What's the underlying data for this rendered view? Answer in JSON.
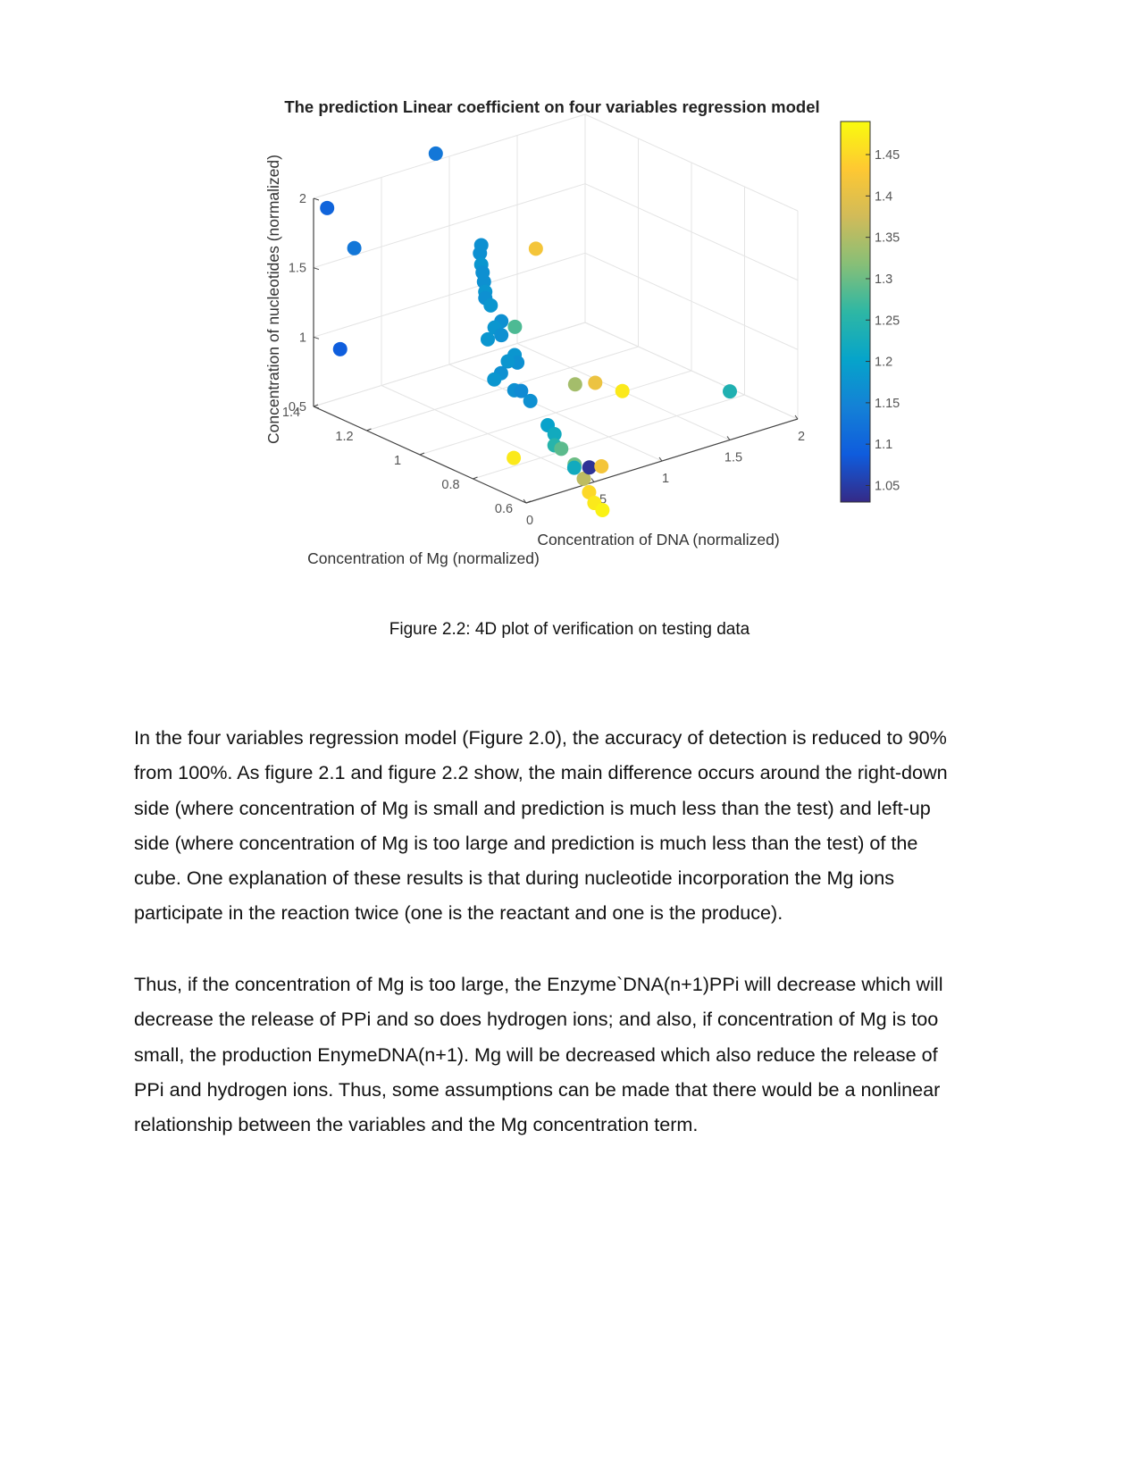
{
  "chart_data": {
    "type": "scatter",
    "title": "The prediction Linear coefficient on four variables regression model",
    "xlabel": "Concentration of DNA (normalized)",
    "ylabel": "Concentration of Mg (normalized)",
    "zlabel": "Concentration of nucleotides (normalized)",
    "x_ticks": [
      "0",
      "0.5",
      "1",
      "1.5",
      "2"
    ],
    "y_ticks": [
      "0.6",
      "0.8",
      "1",
      "1.2",
      "1.4"
    ],
    "z_ticks": [
      "0.5",
      "1",
      "1.5",
      "2"
    ],
    "xlim": [
      0,
      2
    ],
    "ylim": [
      0.6,
      1.4
    ],
    "zlim": [
      0.5,
      2
    ],
    "colorbar_ticks": [
      "1.05",
      "1.1",
      "1.15",
      "1.2",
      "1.25",
      "1.3",
      "1.35",
      "1.4",
      "1.45"
    ],
    "colorbar_range": [
      1.03,
      1.49
    ],
    "colormap": [
      "#352a87",
      "#0f5cdd",
      "#1481d6",
      "#06a4ca",
      "#2eb7a4",
      "#87bf77",
      "#d1bb59",
      "#fec832",
      "#f9fb0e"
    ],
    "grid": true,
    "points": [
      {
        "x": 0.9,
        "y": 1.4,
        "z": 2.05,
        "c": 1.13
      },
      {
        "x": 0.1,
        "y": 1.4,
        "z": 1.9,
        "c": 1.1
      },
      {
        "x": 0.3,
        "y": 1.4,
        "z": 1.55,
        "c": 1.13
      },
      {
        "x": 0.0,
        "y": 1.3,
        "z": 1.0,
        "c": 1.09
      },
      {
        "x": 0.55,
        "y": 1.05,
        "z": 1.8,
        "c": 1.17
      },
      {
        "x": 0.56,
        "y": 1.06,
        "z": 1.73,
        "c": 1.17
      },
      {
        "x": 0.55,
        "y": 1.05,
        "z": 1.66,
        "c": 1.18
      },
      {
        "x": 0.56,
        "y": 1.05,
        "z": 1.6,
        "c": 1.17
      },
      {
        "x": 0.57,
        "y": 1.05,
        "z": 1.53,
        "c": 1.17
      },
      {
        "x": 0.56,
        "y": 1.04,
        "z": 1.47,
        "c": 1.18
      },
      {
        "x": 0.58,
        "y": 1.05,
        "z": 1.41,
        "c": 1.17
      },
      {
        "x": 0.6,
        "y": 1.04,
        "z": 1.36,
        "c": 1.18
      },
      {
        "x": 0.6,
        "y": 1.0,
        "z": 1.28,
        "c": 1.17
      },
      {
        "x": 0.55,
        "y": 1.0,
        "z": 1.25,
        "c": 1.18
      },
      {
        "x": 0.5,
        "y": 1.0,
        "z": 1.18,
        "c": 1.18
      },
      {
        "x": 0.6,
        "y": 1.0,
        "z": 1.18,
        "c": 1.17
      },
      {
        "x": 0.7,
        "y": 1.0,
        "z": 1.21,
        "c": 1.28
      },
      {
        "x": 0.6,
        "y": 0.95,
        "z": 1.08,
        "c": 1.18
      },
      {
        "x": 0.62,
        "y": 0.95,
        "z": 1.02,
        "c": 1.17
      },
      {
        "x": 0.55,
        "y": 0.95,
        "z": 1.05,
        "c": 1.18
      },
      {
        "x": 0.5,
        "y": 0.95,
        "z": 0.98,
        "c": 1.17
      },
      {
        "x": 0.45,
        "y": 0.95,
        "z": 0.95,
        "c": 1.18
      },
      {
        "x": 0.5,
        "y": 0.9,
        "z": 0.9,
        "c": 1.17
      },
      {
        "x": 0.55,
        "y": 0.9,
        "z": 0.88,
        "c": 1.16
      },
      {
        "x": 0.52,
        "y": 0.85,
        "z": 0.86,
        "c": 1.17
      },
      {
        "x": 1.05,
        "y": 1.1,
        "z": 1.58,
        "c": 1.42
      },
      {
        "x": 0.85,
        "y": 0.85,
        "z": 0.88,
        "c": 1.34
      },
      {
        "x": 0.9,
        "y": 0.8,
        "z": 0.92,
        "c": 1.41
      },
      {
        "x": 1.1,
        "y": 0.8,
        "z": 0.8,
        "c": 1.47
      },
      {
        "x": 1.5,
        "y": 0.6,
        "z": 0.85,
        "c": 1.24
      },
      {
        "x": 0.55,
        "y": 0.8,
        "z": 0.72,
        "c": 1.2
      },
      {
        "x": 0.6,
        "y": 0.8,
        "z": 0.64,
        "c": 1.22
      },
      {
        "x": 0.6,
        "y": 0.8,
        "z": 0.56,
        "c": 1.25
      },
      {
        "x": 0.65,
        "y": 0.8,
        "z": 0.52,
        "c": 1.29
      },
      {
        "x": 0.65,
        "y": 0.75,
        "z": 0.45,
        "c": 1.3
      },
      {
        "x": 0.55,
        "y": 0.7,
        "z": 0.5,
        "c": 1.22
      },
      {
        "x": 0.3,
        "y": 0.8,
        "z": 0.56,
        "c": 1.47
      },
      {
        "x": 0.62,
        "y": 0.7,
        "z": 0.4,
        "c": 1.36
      },
      {
        "x": 0.7,
        "y": 0.72,
        "z": 0.44,
        "c": 1.04
      },
      {
        "x": 0.75,
        "y": 0.7,
        "z": 0.45,
        "c": 1.42
      },
      {
        "x": 0.62,
        "y": 0.68,
        "z": 0.32,
        "c": 1.45
      },
      {
        "x": 0.62,
        "y": 0.66,
        "z": 0.26,
        "c": 1.47
      },
      {
        "x": 0.64,
        "y": 0.64,
        "z": 0.22,
        "c": 1.48
      }
    ]
  },
  "caption": "Figure 2.2: 4D plot of verification on testing data",
  "paragraph1": [
    "In the four variables regression model (Figure 2.0), the accuracy of detection is reduced to 90%",
    "from 100%. As figure 2.1 and figure 2.2 show, the main difference occurs around the right-down",
    "side (where concentration of Mg is small and prediction is much less than the test) and left-up",
    "side (where concentration of Mg is too large and prediction is much less than the test) of the",
    "cube. One explanation of these results is that during nucleotide incorporation the Mg ions",
    "participate in the reaction twice (one is the reactant and one is the produce)."
  ],
  "paragraph2": [
    "Thus, if the concentration of Mg is too large, the Enzyme`DNA(n+1)PPi will decrease which will",
    "decrease the release of PPi and so does hydrogen ions; and also, if concentration of Mg is too",
    "small, the production EnymeDNA(n+1). Mg will be decreased which also reduce the release of",
    "PPi and hydrogen ions. Thus, some assumptions can be made that there would be a nonlinear",
    "relationship between the variables and the Mg concentration term."
  ]
}
